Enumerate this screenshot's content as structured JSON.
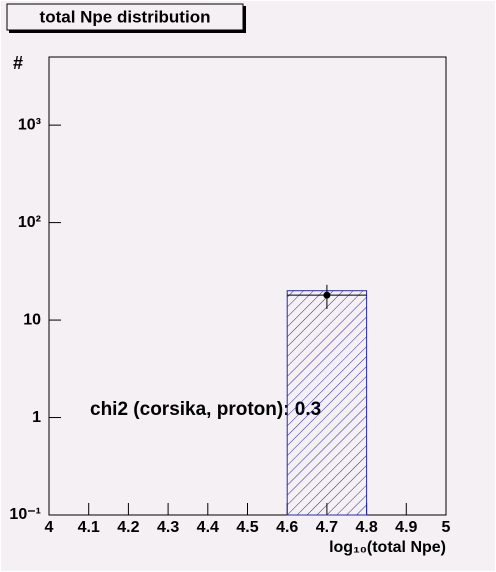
{
  "chart_data": {
    "type": "histogram",
    "title": "total Npe distribution",
    "xlabel": "log₁₀(total Npe)",
    "ylabel": "#",
    "bins": [
      4.6,
      4.8
    ],
    "counts": [
      20
    ],
    "color": "#2a2aa0",
    "points": {
      "x": [
        4.7
      ],
      "values": [
        18
      ],
      "errors": [
        5
      ],
      "color": "#000000"
    },
    "xlim": [
      4,
      5
    ],
    "xticks": [
      4,
      4.1,
      4.2,
      4.3,
      4.4,
      4.5,
      4.6,
      4.7,
      4.8,
      4.9,
      5
    ],
    "ylim": [
      0.1,
      5000
    ],
    "log_y": true,
    "yticks": [
      {
        "value": 0.1,
        "label": "10⁻¹"
      },
      1,
      10,
      {
        "value": 100,
        "label": "10²"
      },
      {
        "value": 1000,
        "label": "10³"
      }
    ],
    "annotation": "chi2 (corsika, proton): 0.3"
  }
}
